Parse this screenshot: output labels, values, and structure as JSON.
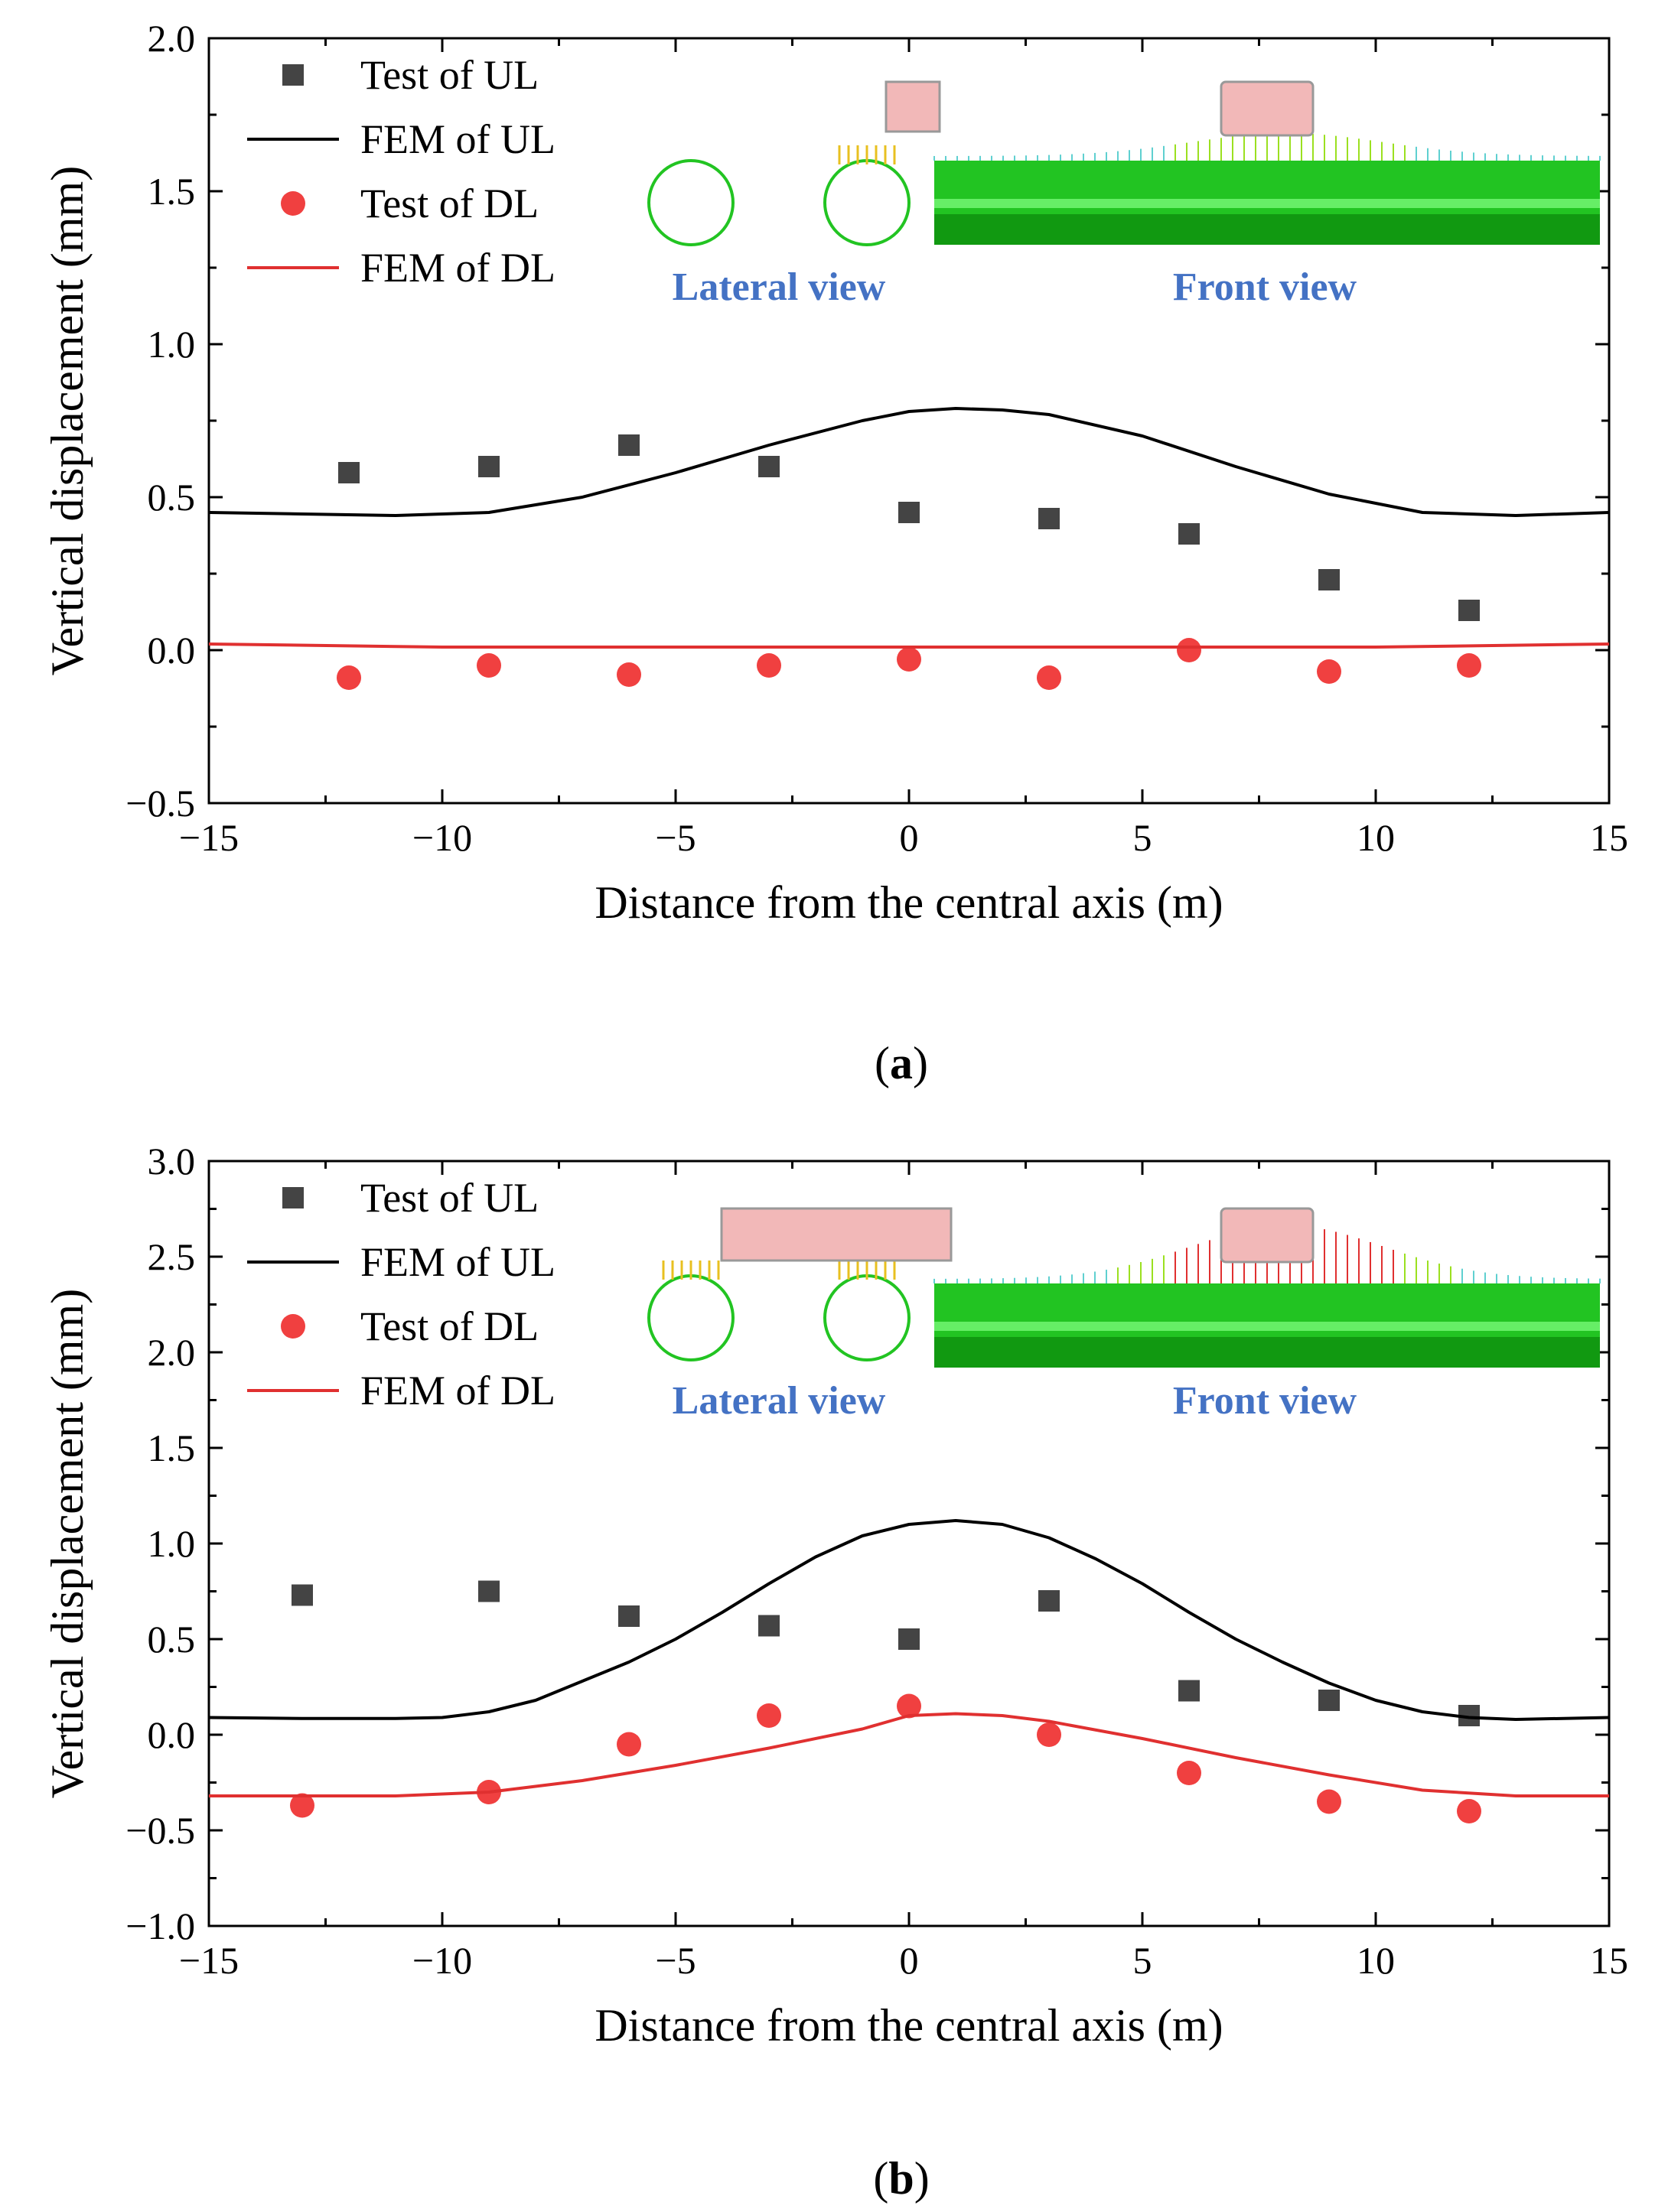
{
  "chart_data": [
    {
      "panel": "(a)",
      "panel_letter": "a",
      "type": "scatter",
      "xlabel": "Distance from the central axis (m)",
      "ylabel": "Vertical displacement (mm)",
      "xlim": [
        -15,
        15
      ],
      "ylim": [
        -0.5,
        2.0
      ],
      "xticks": [
        -15,
        -10,
        -5,
        0,
        5,
        10,
        15
      ],
      "yticks": [
        -0.5,
        0.0,
        0.5,
        1.0,
        1.5,
        2.0
      ],
      "xtick_labels": [
        "−15",
        "−10",
        "−5",
        "0",
        "5",
        "10",
        "15"
      ],
      "ytick_labels": [
        "−0.5",
        "0.0",
        "0.5",
        "1.0",
        "1.5",
        "2.0"
      ],
      "series": [
        {
          "name": "Test of UL",
          "kind": "scatter",
          "marker": "square",
          "color": "#444444",
          "x": [
            -12,
            -9,
            -6,
            -3,
            0,
            3,
            6,
            9,
            12
          ],
          "y": [
            0.58,
            0.6,
            0.67,
            0.6,
            0.45,
            0.43,
            0.38,
            0.23,
            0.13
          ]
        },
        {
          "name": "FEM of UL",
          "kind": "line",
          "color": "#000000",
          "x": [
            -15,
            -13,
            -11,
            -9,
            -7,
            -5,
            -3,
            -1,
            0,
            1,
            2,
            3,
            5,
            7,
            9,
            11,
            13,
            15
          ],
          "y": [
            0.45,
            0.445,
            0.44,
            0.45,
            0.5,
            0.58,
            0.67,
            0.75,
            0.78,
            0.79,
            0.785,
            0.77,
            0.7,
            0.6,
            0.51,
            0.45,
            0.44,
            0.45
          ]
        },
        {
          "name": "Test of DL",
          "kind": "scatter",
          "marker": "circle",
          "color": "#f04040",
          "x": [
            -12,
            -9,
            -6,
            -3,
            0,
            3,
            6,
            9,
            12
          ],
          "y": [
            -0.09,
            -0.05,
            -0.08,
            -0.05,
            -0.03,
            -0.09,
            0.0,
            -0.07,
            -0.05
          ]
        },
        {
          "name": "FEM of DL",
          "kind": "line",
          "color": "#e03030",
          "x": [
            -15,
            -10,
            -5,
            0,
            5,
            10,
            15
          ],
          "y": [
            0.02,
            0.01,
            0.01,
            0.01,
            0.01,
            0.01,
            0.02
          ]
        }
      ]
    },
    {
      "panel": "(b)",
      "panel_letter": "b",
      "type": "scatter",
      "xlabel": "Distance from the central axis (m)",
      "ylabel": "Vertical displacement (mm)",
      "xlim": [
        -15,
        15
      ],
      "ylim": [
        -1.0,
        3.0
      ],
      "xticks": [
        -15,
        -10,
        -5,
        0,
        5,
        10,
        15
      ],
      "yticks": [
        -1.0,
        -0.5,
        0.0,
        0.5,
        1.0,
        1.5,
        2.0,
        2.5,
        3.0
      ],
      "xtick_labels": [
        "−15",
        "−10",
        "−5",
        "0",
        "5",
        "10",
        "15"
      ],
      "ytick_labels": [
        "−1.0",
        "−0.5",
        "0.0",
        "0.5",
        "1.0",
        "1.5",
        "2.0",
        "2.5",
        "3.0"
      ],
      "series": [
        {
          "name": "Test of UL",
          "kind": "scatter",
          "marker": "square",
          "color": "#444444",
          "x": [
            -13,
            -9,
            -6,
            -3,
            0,
            3,
            6,
            9,
            12
          ],
          "y": [
            0.73,
            0.75,
            0.62,
            0.57,
            0.5,
            0.7,
            0.23,
            0.18,
            0.1
          ]
        },
        {
          "name": "FEM of UL",
          "kind": "line",
          "color": "#000000",
          "x": [
            -15,
            -13,
            -11,
            -10,
            -9,
            -8,
            -6,
            -5,
            -4,
            -3,
            -2,
            -1,
            0,
            1,
            2,
            3,
            4,
            5,
            6,
            7,
            8,
            9,
            10,
            11,
            12,
            13,
            15
          ],
          "y": [
            0.09,
            0.085,
            0.085,
            0.09,
            0.12,
            0.18,
            0.38,
            0.5,
            0.64,
            0.79,
            0.93,
            1.04,
            1.1,
            1.12,
            1.1,
            1.03,
            0.92,
            0.79,
            0.64,
            0.5,
            0.38,
            0.27,
            0.18,
            0.12,
            0.09,
            0.08,
            0.09
          ]
        },
        {
          "name": "Test of DL",
          "kind": "scatter",
          "marker": "circle",
          "color": "#f04040",
          "x": [
            -13,
            -9,
            -6,
            -3,
            0,
            3,
            6,
            9,
            12
          ],
          "y": [
            -0.37,
            -0.3,
            -0.05,
            0.1,
            0.15,
            0.0,
            -0.2,
            -0.35,
            -0.4
          ]
        },
        {
          "name": "FEM of DL",
          "kind": "line",
          "color": "#e03030",
          "x": [
            -15,
            -11,
            -9,
            -7,
            -5,
            -3,
            -1,
            0,
            1,
            2,
            3,
            5,
            7,
            9,
            11,
            13,
            15
          ],
          "y": [
            -0.32,
            -0.32,
            -0.3,
            -0.24,
            -0.16,
            -0.07,
            0.03,
            0.1,
            0.11,
            0.1,
            0.07,
            -0.02,
            -0.12,
            -0.21,
            -0.29,
            -0.32,
            -0.32
          ]
        }
      ]
    }
  ],
  "insets": {
    "lateral_view_label": "Lateral view",
    "front_view_label": "Front view"
  },
  "colors": {
    "fem_green": "#22c422",
    "label_blue": "#4472c4",
    "load_pink": "#f2b8b8"
  }
}
